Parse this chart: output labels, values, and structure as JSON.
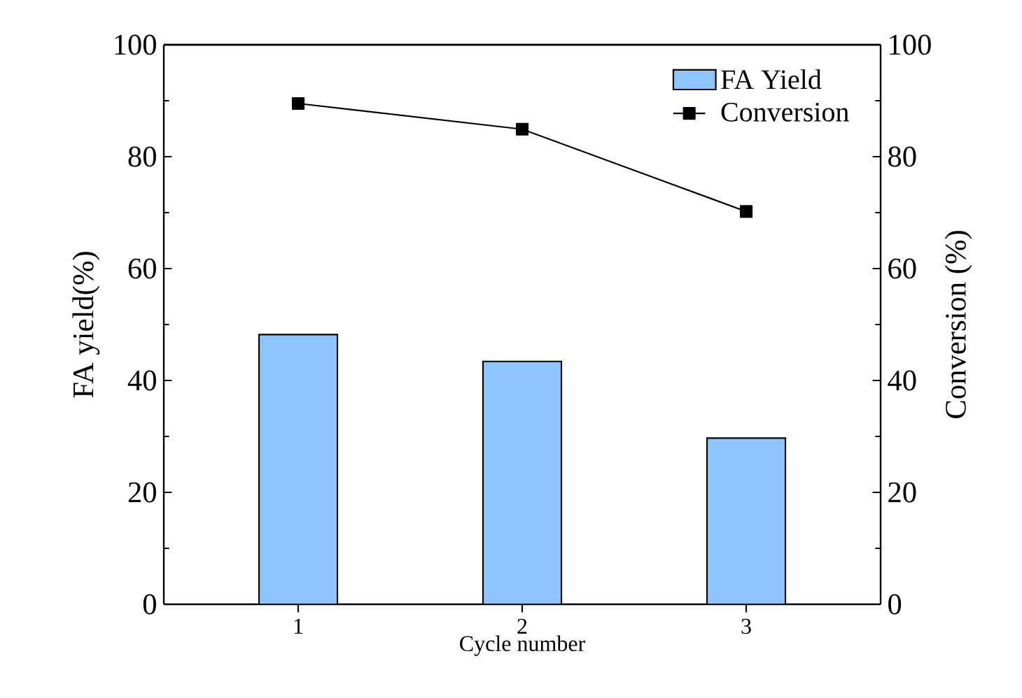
{
  "chart_data": {
    "type": "bar",
    "xlabel": "Cycle number",
    "ylabel": "FA yield(%)",
    "y2label": "Conversion (%)",
    "categories": [
      "1",
      "2",
      "3"
    ],
    "series": [
      {
        "name": "FA Yield",
        "color": "#8cc4fc",
        "values": [
          48.2,
          43.4,
          29.7
        ]
      },
      {
        "name": "Conversion",
        "type": "line",
        "axis": "y2",
        "color": "#000000",
        "values": [
          89.5,
          84.9,
          70.2
        ]
      }
    ],
    "ylim": [
      0,
      100
    ],
    "yticks": [
      0,
      20,
      40,
      60,
      80,
      100
    ],
    "y2lim": [
      0,
      100
    ],
    "y2ticks": [
      0,
      20,
      40,
      60,
      80,
      100
    ],
    "marker": "square",
    "line_style": "solid",
    "legend": "top right",
    "grid": false
  }
}
